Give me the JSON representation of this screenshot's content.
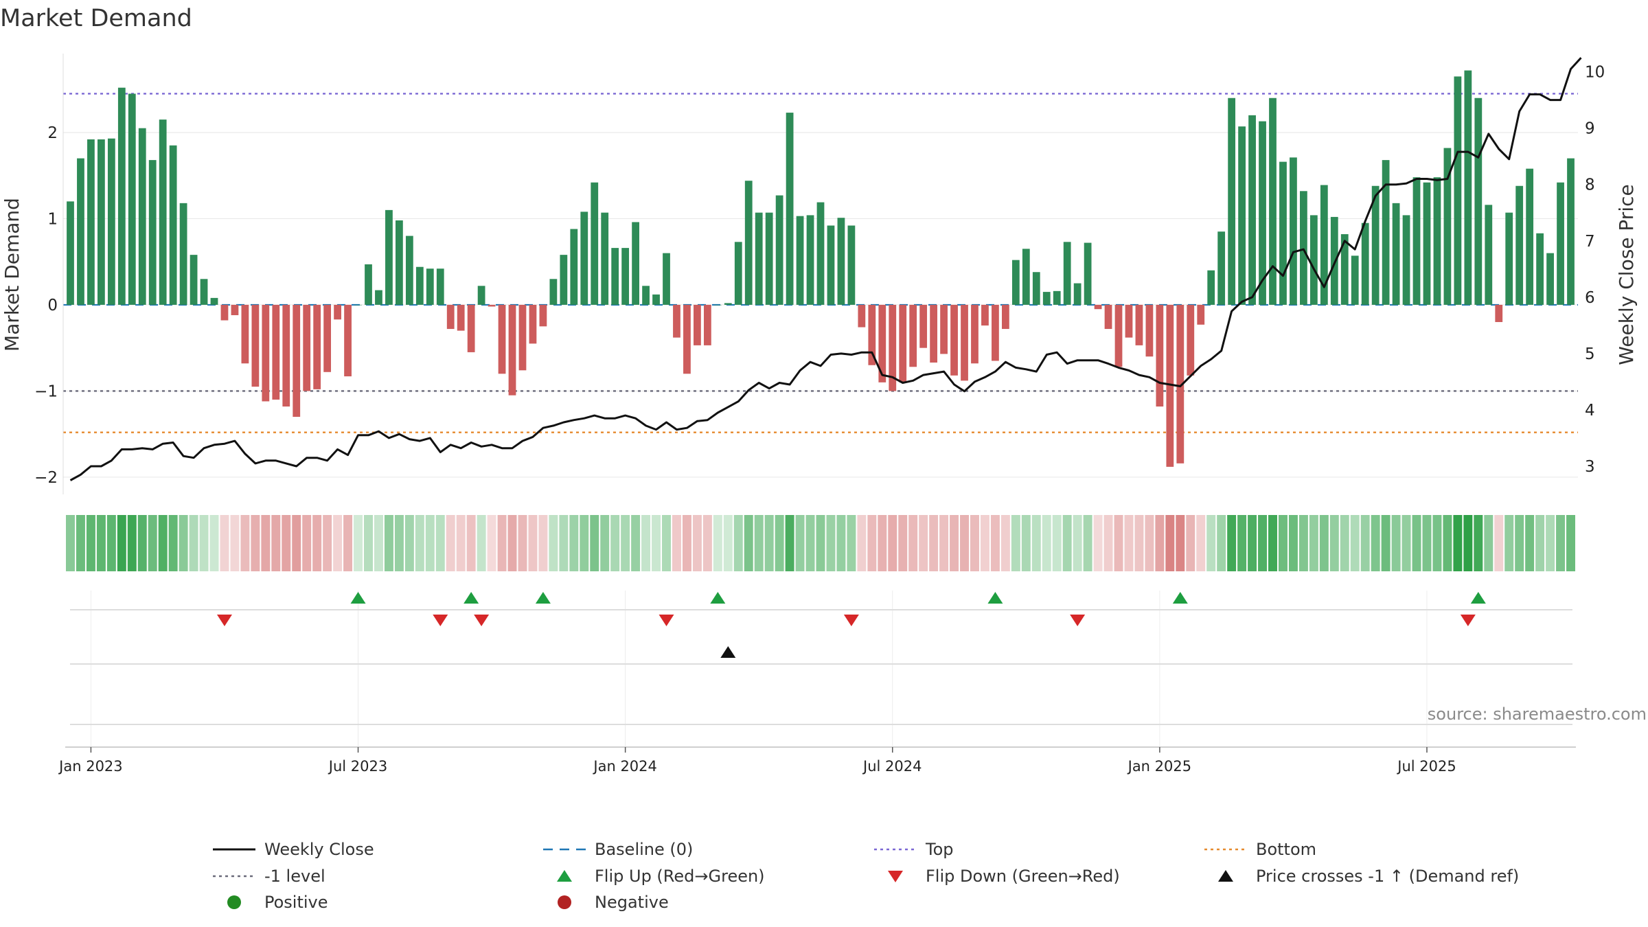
{
  "chart_data": {
    "type": "bar",
    "title": "Market Demand",
    "ylabel_left": "Market Demand",
    "ylabel_right": "Weekly Close Price",
    "source": "source: sharemaestro.com",
    "ylim_left": [
      -2.2,
      2.9
    ],
    "ylim_right": [
      2.5,
      10.3
    ],
    "yticks_left": [
      -2,
      -1,
      0,
      1,
      2
    ],
    "yticks_left_labels": [
      "−2",
      "−1",
      "0",
      "1",
      "2"
    ],
    "yticks_right": [
      3,
      4,
      5,
      6,
      7,
      8,
      9,
      10
    ],
    "reference_lines": {
      "top": 2.45,
      "minus_one": -1,
      "bottom": -1.48
    },
    "xtick_labels": [
      "Jan 2023",
      "Jul 2023",
      "Jan 2024",
      "Jul 2024",
      "Jan 2025",
      "Jul 2025"
    ],
    "xtick_week_index": [
      2,
      28,
      54,
      80,
      106,
      132
    ],
    "series": [
      {
        "name": "Market Demand",
        "values": [
          1.2,
          1.7,
          1.92,
          1.92,
          1.93,
          2.52,
          2.45,
          2.05,
          1.68,
          2.15,
          1.85,
          1.18,
          0.58,
          0.3,
          0.08,
          -0.18,
          -0.12,
          -0.68,
          -0.95,
          -1.12,
          -1.1,
          -1.18,
          -1.3,
          -1.0,
          -0.98,
          -0.78,
          -0.17,
          -0.83,
          0.0,
          0.47,
          0.17,
          1.1,
          0.98,
          0.8,
          0.44,
          0.42,
          0.42,
          -0.28,
          -0.3,
          -0.55,
          0.22,
          -0.02,
          -0.8,
          -1.05,
          -0.76,
          -0.45,
          -0.25,
          0.3,
          0.58,
          0.88,
          1.08,
          1.42,
          1.07,
          0.66,
          0.66,
          0.96,
          0.22,
          0.12,
          0.6,
          -0.38,
          -0.8,
          -0.47,
          -0.47,
          0.0,
          0.02,
          0.73,
          1.44,
          1.07,
          1.07,
          1.27,
          2.23,
          1.03,
          1.04,
          1.19,
          0.92,
          1.01,
          0.92,
          -0.26,
          -0.7,
          -0.9,
          -1.0,
          -0.9,
          -0.72,
          -0.5,
          -0.67,
          -0.57,
          -0.82,
          -0.88,
          -0.68,
          -0.24,
          -0.65,
          -0.28,
          0.52,
          0.65,
          0.38,
          0.15,
          0.16,
          0.73,
          0.25,
          0.72,
          -0.05,
          -0.28,
          -0.72,
          -0.38,
          -0.47,
          -0.6,
          -1.18,
          -1.88,
          -1.84,
          -0.82,
          -0.23,
          0.4,
          0.85,
          2.4,
          2.07,
          2.2,
          2.13,
          2.4,
          1.66,
          1.71,
          1.32,
          1.04,
          1.39,
          1.02,
          0.82,
          0.57,
          0.95,
          1.38,
          1.68,
          1.18,
          1.04,
          1.48,
          1.42,
          1.48,
          1.82,
          2.65,
          2.72,
          2.4,
          1.16,
          -0.2,
          1.07,
          1.38,
          1.58,
          0.83,
          0.6,
          1.42,
          1.7
        ]
      },
      {
        "name": "Weekly Close",
        "values": [
          2.75,
          2.85,
          3.0,
          3.0,
          3.1,
          3.3,
          3.3,
          3.32,
          3.3,
          3.4,
          3.42,
          3.18,
          3.15,
          3.32,
          3.38,
          3.4,
          3.45,
          3.22,
          3.05,
          3.1,
          3.1,
          3.05,
          3.0,
          3.15,
          3.15,
          3.1,
          3.3,
          3.2,
          3.55,
          3.55,
          3.62,
          3.5,
          3.57,
          3.48,
          3.45,
          3.5,
          3.25,
          3.38,
          3.32,
          3.42,
          3.35,
          3.38,
          3.32,
          3.32,
          3.45,
          3.52,
          3.68,
          3.72,
          3.78,
          3.82,
          3.85,
          3.9,
          3.85,
          3.85,
          3.9,
          3.85,
          3.72,
          3.65,
          3.78,
          3.65,
          3.68,
          3.8,
          3.82,
          3.95,
          4.05,
          4.15,
          4.35,
          4.48,
          4.38,
          4.48,
          4.45,
          4.7,
          4.85,
          4.78,
          4.98,
          5.0,
          4.98,
          5.02,
          5.02,
          4.62,
          4.58,
          4.48,
          4.52,
          4.62,
          4.65,
          4.68,
          4.45,
          4.33,
          4.5,
          4.58,
          4.68,
          4.85,
          4.75,
          4.72,
          4.68,
          4.98,
          5.02,
          4.82,
          4.88,
          4.88,
          4.88,
          4.82,
          4.75,
          4.7,
          4.62,
          4.58,
          4.48,
          4.45,
          4.42,
          4.6,
          4.78,
          4.9,
          5.05,
          5.75,
          5.92,
          6.0,
          6.3,
          6.55,
          6.38,
          6.8,
          6.85,
          6.5,
          6.18,
          6.6,
          7.0,
          6.85,
          7.35,
          7.8,
          8.0,
          8.0,
          8.02,
          8.1,
          8.1,
          8.08,
          8.1,
          8.58,
          8.58,
          8.48,
          8.9,
          8.63,
          8.45,
          9.3,
          9.6,
          9.6,
          9.5,
          9.5,
          10.05,
          10.25
        ]
      }
    ],
    "flip_up_weeks": [
      28,
      39,
      46,
      63,
      90,
      108,
      137
    ],
    "flip_down_weeks": [
      15,
      36,
      40,
      58,
      76,
      98,
      136
    ],
    "price_cross_weeks": [
      64
    ],
    "colors": {
      "positive_bar": "#2e8b57",
      "negative_bar": "#cd5c5c",
      "price_line": "#111111",
      "baseline": "#1f77b4",
      "top_line": "#7b68d4",
      "minus_one_line": "#6a6a7a",
      "bottom_line": "#e68a2e",
      "flip_up": "#1e9e40",
      "flip_down": "#d62728",
      "cross": "#111111",
      "positive_dot": "#228b22",
      "negative_dot": "#b22222"
    },
    "legend": [
      {
        "label": "Weekly Close",
        "marker": "solid-line",
        "color": "#111111"
      },
      {
        "label": "Baseline (0)",
        "marker": "dash-line",
        "color": "#1f77b4"
      },
      {
        "label": "Top",
        "marker": "dot-line",
        "color": "#7b68d4"
      },
      {
        "label": "Bottom",
        "marker": "dot-line",
        "color": "#e68a2e"
      },
      {
        "label": "-1 level",
        "marker": "dot-line",
        "color": "#6a6a7a"
      },
      {
        "label": "Flip Up (Red→Green)",
        "marker": "triangle-up",
        "color": "#1e9e40"
      },
      {
        "label": "Flip Down (Green→Red)",
        "marker": "triangle-down",
        "color": "#d62728"
      },
      {
        "label": "Price crosses -1 ↑ (Demand ref)",
        "marker": "triangle-up",
        "color": "#111111"
      },
      {
        "label": "Positive",
        "marker": "circle",
        "color": "#228b22"
      },
      {
        "label": "Negative",
        "marker": "circle",
        "color": "#b22222"
      }
    ]
  }
}
